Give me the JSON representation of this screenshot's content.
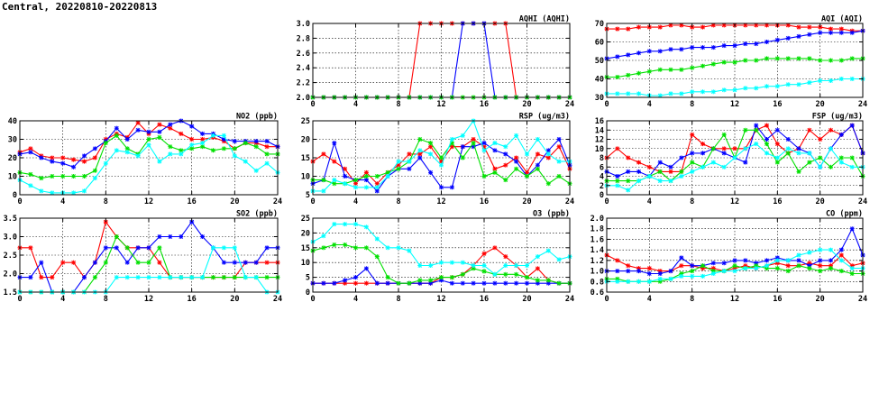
{
  "title": "Central, 20220810-20220813",
  "colors": {
    "red": "#ff0000",
    "blue": "#0000ff",
    "green": "#00e000",
    "cyan": "#00ffff"
  },
  "chart_data": [
    {
      "type": "line",
      "title": "AQHI (AQHI)",
      "xticks": [
        0,
        4,
        8,
        12,
        16,
        20,
        24
      ],
      "xlim": [
        0,
        24
      ],
      "yticks": [
        "2.0",
        "2.2",
        "2.4",
        "2.6",
        "2.8",
        "3.0"
      ],
      "ylim": [
        2.0,
        3.0
      ],
      "grid": true,
      "series": [
        {
          "color": "red",
          "values": [
            2,
            2,
            2,
            2,
            2,
            2,
            2,
            2,
            2,
            2,
            3,
            3,
            3,
            3,
            3,
            3,
            3,
            3,
            3,
            2,
            2,
            2,
            2,
            2,
            2
          ]
        },
        {
          "color": "blue",
          "values": [
            2,
            2,
            2,
            2,
            2,
            2,
            2,
            2,
            2,
            2,
            2,
            2,
            2,
            2,
            3,
            3,
            3,
            2,
            2,
            2,
            2,
            2,
            2,
            2,
            2
          ]
        },
        {
          "color": "green",
          "values": [
            2,
            2,
            2,
            2,
            2,
            2,
            2,
            2,
            2,
            2,
            2,
            2,
            2,
            2,
            2,
            2,
            2,
            2,
            2,
            2,
            2,
            2,
            2,
            2,
            2
          ]
        }
      ]
    },
    {
      "type": "line",
      "title": "AQI (AQI)",
      "xticks": [
        0,
        4,
        8,
        12,
        16,
        20,
        24
      ],
      "xlim": [
        0,
        24
      ],
      "yticks": [
        "30",
        "40",
        "50",
        "60",
        "70"
      ],
      "ylim": [
        30,
        70
      ],
      "grid": true,
      "series": [
        {
          "color": "red",
          "values": [
            67,
            67,
            67,
            68,
            68,
            68,
            69,
            69,
            68,
            68,
            69,
            69,
            69,
            69,
            69,
            69,
            69,
            69,
            68,
            68,
            68,
            67,
            67,
            66,
            66
          ]
        },
        {
          "color": "blue",
          "values": [
            51,
            52,
            53,
            54,
            55,
            55,
            56,
            56,
            57,
            57,
            57,
            58,
            58,
            59,
            59,
            60,
            61,
            62,
            63,
            64,
            65,
            65,
            65,
            65,
            66
          ]
        },
        {
          "color": "green",
          "values": [
            41,
            41,
            42,
            43,
            44,
            45,
            45,
            45,
            46,
            47,
            48,
            49,
            49,
            50,
            50,
            51,
            51,
            51,
            51,
            51,
            50,
            50,
            50,
            51,
            51
          ]
        },
        {
          "color": "cyan",
          "values": [
            32,
            32,
            32,
            32,
            31,
            31,
            32,
            32,
            33,
            33,
            33,
            34,
            34,
            35,
            35,
            36,
            36,
            37,
            37,
            38,
            39,
            39,
            40,
            40,
            40
          ]
        }
      ]
    },
    {
      "type": "line",
      "title": "NO2 (ppb)",
      "xticks": [
        0,
        4,
        8,
        12,
        16,
        20,
        24
      ],
      "xlim": [
        0,
        24
      ],
      "yticks": [
        "0",
        "10",
        "20",
        "30",
        "40"
      ],
      "ylim": [
        0,
        40
      ],
      "grid": true,
      "series": [
        {
          "color": "red",
          "values": [
            23,
            25,
            21,
            20,
            20,
            19,
            18,
            20,
            30,
            33,
            31,
            39,
            33,
            38,
            36,
            33,
            30,
            30,
            31,
            29,
            25,
            28,
            28,
            26,
            26
          ]
        },
        {
          "color": "blue",
          "values": [
            22,
            23,
            20,
            18,
            17,
            15,
            21,
            25,
            29,
            36,
            30,
            35,
            34,
            34,
            38,
            40,
            37,
            33,
            33,
            30,
            29,
            29,
            29,
            29,
            26
          ]
        },
        {
          "color": "green",
          "values": [
            12,
            11,
            9,
            10,
            10,
            10,
            10,
            13,
            28,
            32,
            25,
            22,
            30,
            31,
            26,
            24,
            25,
            26,
            24,
            25,
            25,
            28,
            26,
            22,
            22
          ]
        },
        {
          "color": "cyan",
          "values": [
            8,
            5,
            2,
            1,
            1,
            1,
            2,
            9,
            17,
            24,
            23,
            21,
            27,
            18,
            22,
            22,
            27,
            28,
            32,
            32,
            21,
            18,
            13,
            17,
            12
          ]
        }
      ]
    },
    {
      "type": "line",
      "title": "RSP (ug/m3)",
      "xticks": [
        0,
        4,
        8,
        12,
        16,
        20,
        24
      ],
      "xlim": [
        0,
        24
      ],
      "yticks": [
        "5",
        "10",
        "15",
        "20",
        "25"
      ],
      "ylim": [
        5,
        25
      ],
      "grid": true,
      "series": [
        {
          "color": "red",
          "values": [
            14,
            16,
            14,
            12,
            8,
            11,
            8,
            11,
            13,
            16,
            16,
            18,
            14,
            18,
            18,
            20,
            18,
            12,
            13,
            15,
            11,
            16,
            15,
            18,
            12
          ]
        },
        {
          "color": "blue",
          "values": [
            8,
            9,
            19,
            10,
            9,
            9,
            6,
            10,
            12,
            12,
            15,
            11,
            7,
            7,
            18,
            18,
            19,
            17,
            16,
            14,
            10,
            13,
            17,
            20,
            13
          ]
        },
        {
          "color": "green",
          "values": [
            9,
            9,
            8,
            8,
            9,
            10,
            10,
            11,
            12,
            14,
            20,
            19,
            15,
            19,
            15,
            19,
            10,
            11,
            9,
            12,
            10,
            12,
            8,
            10,
            8
          ]
        },
        {
          "color": "cyan",
          "values": [
            6,
            6,
            9,
            8,
            7,
            7,
            7,
            10,
            14,
            14,
            17,
            16,
            13,
            20,
            21,
            25,
            17,
            19,
            18,
            21,
            16,
            20,
            16,
            14,
            14
          ]
        }
      ]
    },
    {
      "type": "line",
      "title": "FSP (ug/m3)",
      "xticks": [
        0,
        4,
        8,
        12,
        16,
        20,
        24
      ],
      "xlim": [
        0,
        24
      ],
      "yticks": [
        "0",
        "2",
        "4",
        "6",
        "8",
        "10",
        "12",
        "14",
        "16"
      ],
      "ylim": [
        0,
        16
      ],
      "grid": true,
      "series": [
        {
          "color": "red",
          "values": [
            8,
            10,
            8,
            7,
            6,
            5,
            5,
            5,
            13,
            11,
            10,
            10,
            10,
            10,
            14,
            15,
            11,
            9,
            10,
            14,
            12,
            14,
            13,
            15,
            9
          ]
        },
        {
          "color": "blue",
          "values": [
            5,
            4,
            5,
            5,
            4,
            7,
            6,
            8,
            9,
            9,
            10,
            9,
            8,
            7,
            15,
            12,
            14,
            12,
            10,
            9,
            6,
            10,
            13,
            15,
            9
          ]
        },
        {
          "color": "green",
          "values": [
            3,
            3,
            3,
            3,
            4,
            5,
            3,
            5,
            7,
            6,
            10,
            13,
            8,
            14,
            14,
            11,
            7,
            9,
            5,
            7,
            8,
            6,
            8,
            8,
            4
          ]
        },
        {
          "color": "cyan",
          "values": [
            2,
            2,
            1,
            3,
            4,
            3,
            3,
            4,
            5,
            6,
            7,
            6,
            8,
            10,
            11,
            9,
            8,
            10,
            9,
            9,
            6,
            10,
            7,
            6,
            6
          ]
        }
      ]
    },
    {
      "type": "line",
      "title": "SO2 (ppb)",
      "xticks": [
        0,
        4,
        8,
        12,
        16,
        20,
        24
      ],
      "xlim": [
        0,
        24
      ],
      "yticks": [
        "1.5",
        "2.0",
        "2.5",
        "3.0",
        "3.5"
      ],
      "ylim": [
        1.5,
        3.5
      ],
      "grid": true,
      "series": [
        {
          "color": "red",
          "values": [
            2.7,
            2.7,
            1.9,
            1.9,
            2.3,
            2.3,
            1.9,
            2.3,
            3.4,
            3.0,
            2.7,
            2.7,
            2.7,
            2.3,
            1.9,
            1.9,
            1.9,
            1.9,
            1.9,
            1.9,
            1.9,
            2.3,
            2.3,
            2.3,
            2.3
          ]
        },
        {
          "color": "blue",
          "values": [
            1.9,
            1.9,
            2.3,
            1.5,
            1.5,
            1.5,
            1.9,
            2.3,
            2.7,
            2.7,
            2.3,
            2.7,
            2.7,
            3.0,
            3.0,
            3.0,
            3.4,
            3.0,
            2.7,
            2.3,
            2.3,
            2.3,
            2.3,
            2.7,
            2.7
          ]
        },
        {
          "color": "green",
          "values": [
            1.5,
            1.5,
            1.5,
            1.5,
            1.5,
            1.5,
            1.5,
            1.9,
            2.3,
            3.0,
            2.7,
            2.3,
            2.3,
            2.7,
            1.9,
            1.9,
            1.9,
            1.9,
            1.9,
            1.9,
            1.9,
            1.9,
            1.9,
            1.9,
            1.9
          ]
        },
        {
          "color": "cyan",
          "values": [
            1.5,
            1.5,
            1.5,
            1.5,
            1.5,
            1.5,
            1.5,
            1.5,
            1.5,
            1.9,
            1.9,
            1.9,
            1.9,
            1.9,
            1.9,
            1.9,
            1.9,
            1.9,
            2.7,
            2.7,
            2.7,
            1.9,
            1.9,
            1.5,
            1.5
          ]
        }
      ]
    },
    {
      "type": "line",
      "title": "O3 (ppb)",
      "xticks": [
        0,
        4,
        8,
        12,
        16,
        20,
        24
      ],
      "xlim": [
        0,
        24
      ],
      "yticks": [
        "0",
        "5",
        "10",
        "15",
        "20",
        "25"
      ],
      "ylim": [
        0,
        25
      ],
      "grid": true,
      "series": [
        {
          "color": "red",
          "values": [
            3,
            3,
            3,
            3,
            3,
            3,
            3,
            3,
            3,
            3,
            3,
            3,
            5,
            5,
            6,
            9,
            13,
            15,
            12,
            9,
            5,
            8,
            4,
            3,
            3
          ]
        },
        {
          "color": "blue",
          "values": [
            3,
            3,
            3,
            4,
            5,
            8,
            3,
            3,
            3,
            3,
            3,
            3,
            4,
            3,
            3,
            3,
            3,
            3,
            3,
            3,
            3,
            3,
            3,
            3,
            3
          ]
        },
        {
          "color": "green",
          "values": [
            14,
            15,
            16,
            16,
            15,
            15,
            12,
            5,
            3,
            3,
            4,
            4,
            5,
            5,
            6,
            8,
            7,
            6,
            6,
            6,
            5,
            4,
            4,
            3,
            3
          ]
        },
        {
          "color": "cyan",
          "values": [
            17,
            19,
            23,
            23,
            23,
            22,
            18,
            15,
            15,
            14,
            9,
            9,
            10,
            10,
            10,
            9,
            9,
            6,
            9,
            9,
            9,
            12,
            14,
            11,
            12
          ]
        }
      ]
    },
    {
      "type": "line",
      "title": "CO (ppm)",
      "xticks": [
        0,
        4,
        8,
        12,
        16,
        20,
        24
      ],
      "xlim": [
        0,
        24
      ],
      "yticks": [
        "0.6",
        "0.8",
        "1.0",
        "1.2",
        "1.4",
        "1.6",
        "1.8",
        "2.0"
      ],
      "ylim": [
        0.6,
        2.0
      ],
      "grid": true,
      "series": [
        {
          "color": "red",
          "values": [
            1.3,
            1.2,
            1.1,
            1.05,
            1.05,
            1.0,
            1.0,
            1.1,
            1.1,
            1.05,
            1.05,
            1.0,
            1.05,
            1.1,
            1.05,
            1.1,
            1.15,
            1.1,
            1.1,
            1.15,
            1.1,
            1.1,
            1.3,
            1.1,
            1.15
          ]
        },
        {
          "color": "blue",
          "values": [
            1.0,
            1.0,
            1.0,
            1.0,
            0.95,
            0.95,
            1.0,
            1.25,
            1.1,
            1.1,
            1.15,
            1.15,
            1.2,
            1.2,
            1.15,
            1.2,
            1.25,
            1.2,
            1.2,
            1.1,
            1.2,
            1.2,
            1.4,
            1.8,
            1.3
          ]
        },
        {
          "color": "green",
          "values": [
            0.85,
            0.85,
            0.8,
            0.8,
            0.8,
            0.8,
            0.85,
            0.95,
            1.0,
            1.1,
            1.0,
            1.0,
            1.1,
            1.05,
            1.1,
            1.05,
            1.05,
            1.0,
            1.1,
            1.05,
            1.0,
            1.05,
            1.0,
            0.95,
            0.95
          ]
        },
        {
          "color": "cyan",
          "values": [
            0.8,
            0.8,
            0.8,
            0.8,
            0.8,
            0.85,
            0.85,
            0.9,
            0.9,
            0.9,
            0.95,
            1.0,
            1.0,
            1.05,
            1.05,
            1.1,
            1.2,
            1.2,
            1.3,
            1.35,
            1.4,
            1.4,
            1.2,
            1.05,
            1.05
          ]
        }
      ]
    }
  ]
}
